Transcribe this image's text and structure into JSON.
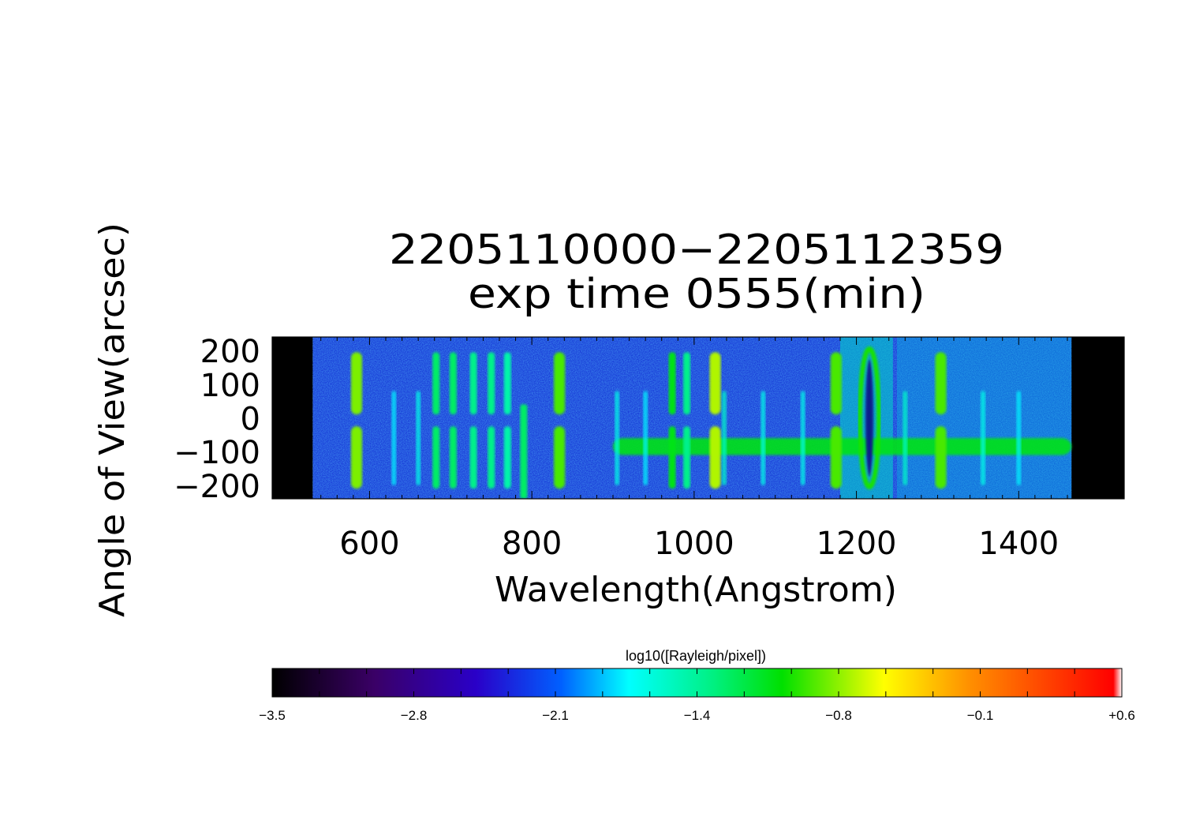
{
  "chart_data": {
    "type": "heatmap",
    "title": "2205110000−2205112359",
    "subtitle": "exp time 0555(min)",
    "xlabel": "Wavelength(Angstrom)",
    "ylabel": "Angle of View(arcsec)",
    "xlim": [
      480,
      1530
    ],
    "ylim": [
      -240,
      240
    ],
    "data_xrange": [
      530,
      1465
    ],
    "x_ticks": [
      {
        "value": 600,
        "label": "600"
      },
      {
        "value": 800,
        "label": "800"
      },
      {
        "value": 1000,
        "label": "1000"
      },
      {
        "value": 1200,
        "label": "1200"
      },
      {
        "value": 1400,
        "label": "1400"
      }
    ],
    "y_ticks": [
      {
        "value": 200,
        "label": "200"
      },
      {
        "value": 100,
        "label": "100"
      },
      {
        "value": 0,
        "label": "0"
      },
      {
        "value": -100,
        "label": "−100"
      },
      {
        "value": -200,
        "label": "−200"
      }
    ],
    "colorbar": {
      "label": "log10([Rayleigh/pixel])",
      "range": [
        -3.5,
        0.6
      ],
      "ticks": [
        "−3.5",
        "−2.8",
        "−2.1",
        "−1.4",
        "−0.8",
        "−0.1",
        "+0.6"
      ],
      "colormap": "rainbow (black-purple-blue-cyan-green-yellow-red)"
    },
    "emission_lines": [
      {
        "wavelength": 584,
        "type": "split",
        "level": -0.8
      },
      {
        "wavelength": 630,
        "type": "faint",
        "level": -1.8
      },
      {
        "wavelength": 660,
        "type": "faint",
        "level": -1.7
      },
      {
        "wavelength": 682,
        "type": "split",
        "level": -1.3
      },
      {
        "wavelength": 703,
        "type": "split",
        "level": -1.3
      },
      {
        "wavelength": 728,
        "type": "split",
        "level": -1.4
      },
      {
        "wavelength": 750,
        "type": "split",
        "level": -1.4
      },
      {
        "wavelength": 770,
        "type": "split",
        "level": -1.5
      },
      {
        "wavelength": 790,
        "type": "full",
        "level": -1.3
      },
      {
        "wavelength": 834,
        "type": "split",
        "level": -0.9
      },
      {
        "wavelength": 905,
        "type": "faint",
        "level": -1.7
      },
      {
        "wavelength": 940,
        "type": "faint",
        "level": -1.8
      },
      {
        "wavelength": 973,
        "type": "split",
        "level": -1.1
      },
      {
        "wavelength": 991,
        "type": "split",
        "level": -1.4
      },
      {
        "wavelength": 1026,
        "type": "split",
        "level": -0.7
      },
      {
        "wavelength": 1037,
        "type": "faint",
        "level": -1.6
      },
      {
        "wavelength": 1085,
        "type": "faint",
        "level": -1.7
      },
      {
        "wavelength": 1134,
        "type": "faint",
        "level": -1.7
      },
      {
        "wavelength": 1175,
        "type": "split",
        "level": -0.9
      },
      {
        "wavelength": 1216,
        "type": "ring",
        "level": -1.0
      },
      {
        "wavelength": 1260,
        "type": "faint",
        "level": -1.6
      },
      {
        "wavelength": 1304,
        "type": "split",
        "level": -0.9
      },
      {
        "wavelength": 1356,
        "type": "faint",
        "level": -1.7
      },
      {
        "wavelength": 1400,
        "type": "faint",
        "level": -1.8
      }
    ],
    "horizontal_band": {
      "angle": -85,
      "range": [
        900,
        1465
      ],
      "level": -1.1
    }
  }
}
